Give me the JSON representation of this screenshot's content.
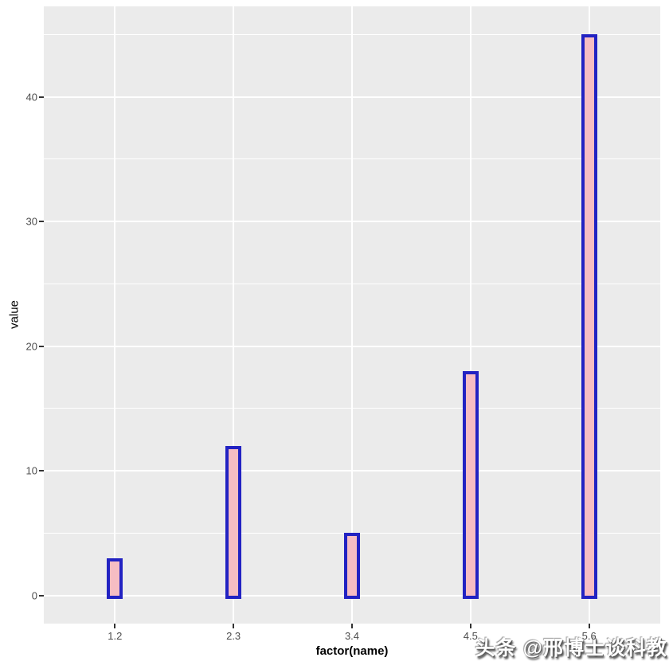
{
  "chart_data": {
    "type": "bar",
    "categories": [
      "1.2",
      "2.3",
      "3.4",
      "4.5",
      "5.6"
    ],
    "values": [
      3,
      12,
      5,
      18,
      45
    ],
    "title": "",
    "xlabel": "factor(name)",
    "ylabel": "value",
    "ylim": [
      0,
      45
    ],
    "y_major_ticks": [
      0,
      10,
      20,
      30,
      40
    ],
    "y_minor_ticks": [
      5,
      15,
      25,
      35,
      45
    ],
    "x_minor_gridlines": false,
    "grid": true,
    "legend": "none",
    "style": {
      "panel_background": "#EBEBEB",
      "outer_background": "#FFFFFF",
      "grid_color": "#FFFFFF",
      "bar_fill": "#F6BDC3",
      "bar_border": "#2222C2",
      "tick_color": "#333333",
      "tick_label_color": "#4D4D4D",
      "axis_title_color": "#000000"
    }
  },
  "watermark": {
    "text": "头条 @邢博士谈科教"
  }
}
